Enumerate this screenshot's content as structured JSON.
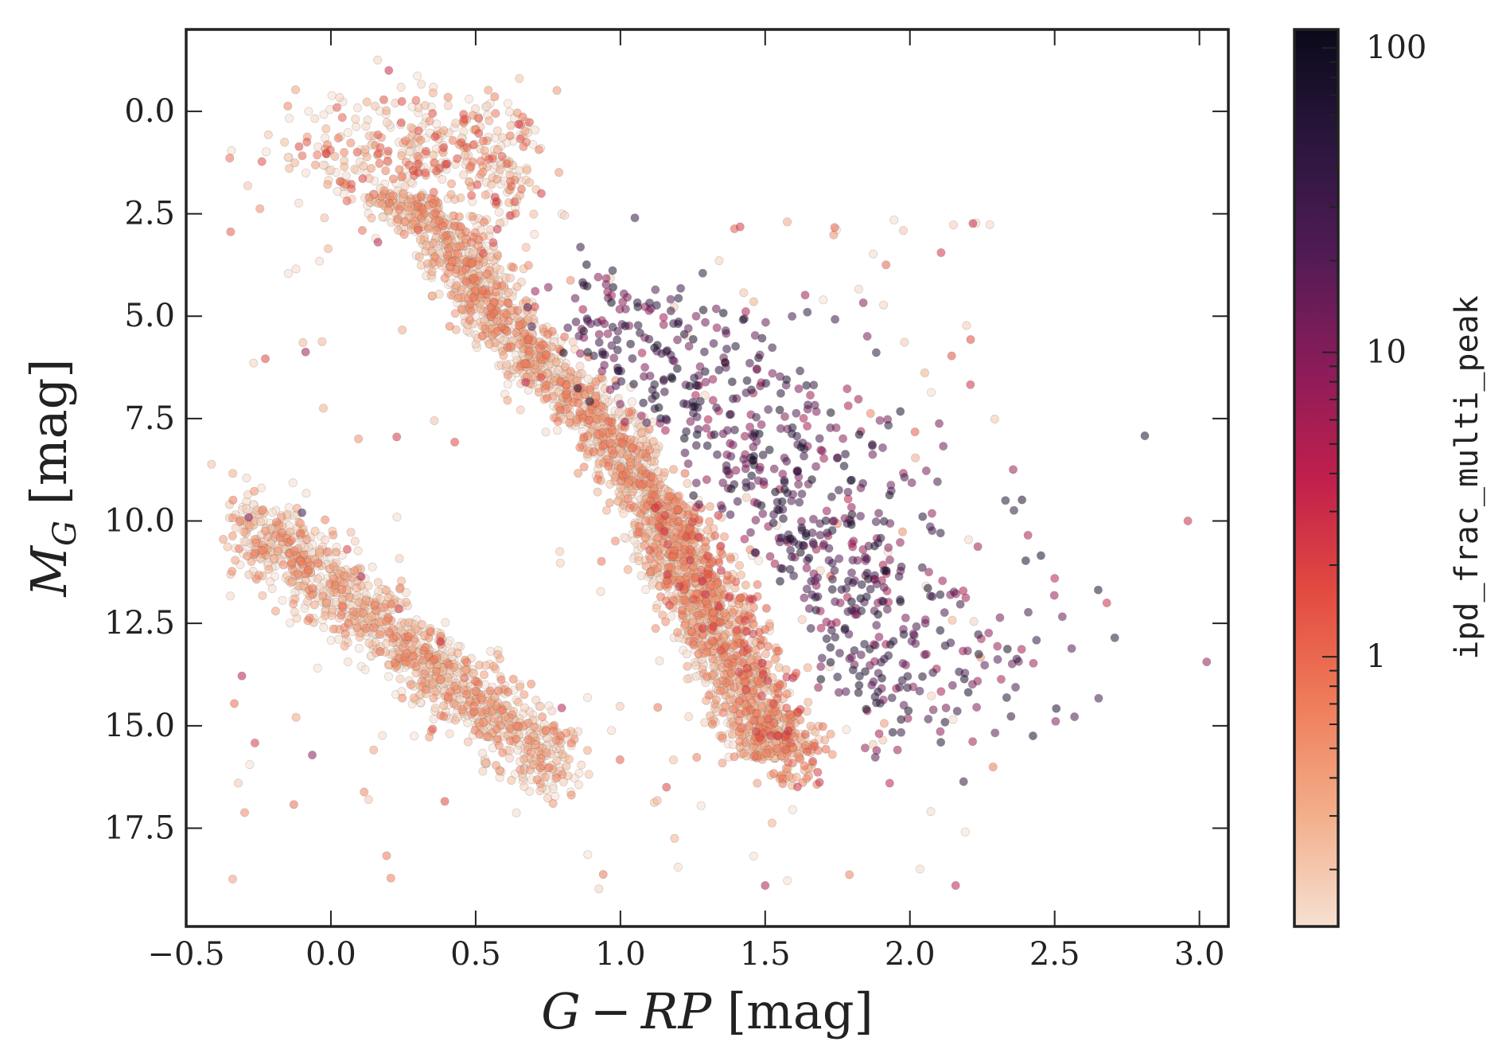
{
  "chart_data": {
    "type": "scatter",
    "title": "",
    "xlabel": "G − RP [mag]",
    "xlabel_parts": {
      "main": "G",
      "op": "−",
      "rp": "RP",
      "unit": " [mag]"
    },
    "ylabel": "M_G [mag]",
    "ylabel_parts": {
      "main": "M",
      "sub": "G",
      "unit": " [mag]"
    },
    "xlim": [
      -0.5,
      3.1
    ],
    "ylim": [
      19.9,
      -2.0
    ],
    "y_inverted": true,
    "grid": false,
    "x_ticks": [
      -0.5,
      0.0,
      0.5,
      1.0,
      1.5,
      2.0,
      2.5,
      3.0
    ],
    "x_tick_labels": [
      "−0.5",
      "0.0",
      "0.5",
      "1.0",
      "1.5",
      "2.0",
      "2.5",
      "3.0"
    ],
    "y_ticks": [
      0.0,
      2.5,
      5.0,
      7.5,
      10.0,
      12.5,
      15.0,
      17.5
    ],
    "y_tick_labels": [
      "0.0",
      "2.5",
      "5.0",
      "7.5",
      "10.0",
      "12.5",
      "15.0",
      "17.5"
    ],
    "colorbar": {
      "label": "ipd_frac_multi_peak",
      "scale": "log",
      "range": [
        0.13,
        115
      ],
      "ticks": [
        1,
        10,
        100
      ],
      "tick_labels": [
        "1",
        "10",
        "100"
      ],
      "colormap": "rocket_r",
      "colors": [
        "#f6e0d2",
        "#f3ae8a",
        "#ef7c5a",
        "#e24a40",
        "#c01f4c",
        "#8a1c5a",
        "#511b55",
        "#2a163d",
        "#0b0a1a"
      ]
    },
    "point_style": {
      "edge_color": "#444444",
      "alpha": 0.55
    },
    "groups": [
      {
        "name": "main sequence",
        "x_range": [
          0.2,
          1.55
        ],
        "y_range": [
          2.0,
          15.8
        ],
        "shape": "curve",
        "points": 2600,
        "c_range": [
          0.13,
          0.9
        ]
      },
      {
        "name": "main sequence red tail",
        "x_range": [
          1.2,
          1.58
        ],
        "y_range": [
          9.5,
          16.5
        ],
        "shape": "curve",
        "points": 400,
        "c_range": [
          0.3,
          3.0
        ]
      },
      {
        "name": "turnoff / subgiants",
        "x_range": [
          -0.15,
          0.7
        ],
        "y_range": [
          -0.5,
          2.5
        ],
        "shape": "cloud",
        "points": 320,
        "c_range": [
          0.13,
          2.0
        ]
      },
      {
        "name": "giant branch",
        "x_range": [
          0.45,
          0.75
        ],
        "y_range": [
          -0.2,
          3.5
        ],
        "shape": "cloud",
        "points": 110,
        "c_range": [
          0.13,
          3.0
        ]
      },
      {
        "name": "white dwarf sequence",
        "x_range": [
          -0.3,
          0.8
        ],
        "y_range": [
          10.0,
          16.0
        ],
        "shape": "band",
        "points": 1300,
        "c_range": [
          0.13,
          0.8
        ]
      },
      {
        "name": "binary / multi-peak cloud",
        "x_range": [
          0.95,
          2.3
        ],
        "y_range": [
          4.4,
          14.5
        ],
        "shape": "cloud",
        "points": 700,
        "c_range": [
          5,
          100
        ]
      },
      {
        "name": "scattered outliers",
        "x_range": [
          -0.35,
          2.3
        ],
        "y_range": [
          2.5,
          19.0
        ],
        "shape": "sparse",
        "points": 180,
        "c_range": [
          0.13,
          10
        ]
      }
    ],
    "notable_points": [
      {
        "x": 2.96,
        "y": 10.0,
        "c": 3.0
      },
      {
        "x": 2.68,
        "y": 12.0,
        "c": 3.0
      },
      {
        "x": 2.5,
        "y": 11.4,
        "c": 4.0
      },
      {
        "x": 2.33,
        "y": 9.5,
        "c": 60
      },
      {
        "x": 1.5,
        "y": 18.9,
        "c": 5.0
      },
      {
        "x": 1.93,
        "y": 16.4,
        "c": 4.0
      },
      {
        "x": 1.05,
        "y": 2.6,
        "c": 40
      },
      {
        "x": 0.2,
        "y": -1.0,
        "c": 3.0
      },
      {
        "x": -0.1,
        "y": 9.8,
        "c": 40
      },
      {
        "x": -0.32,
        "y": 16.4,
        "c": 0.2
      },
      {
        "x": 0.13,
        "y": 16.8,
        "c": 0.2
      }
    ]
  }
}
